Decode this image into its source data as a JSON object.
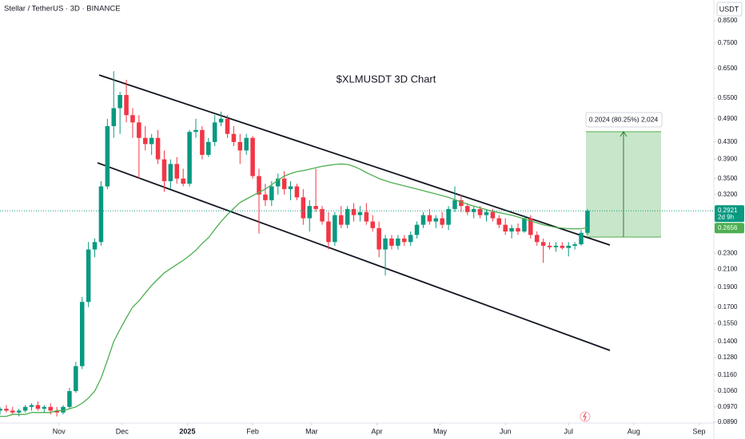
{
  "chart_data": {
    "type": "candlestick",
    "header": "Stellar / TetherUS · 3D · BINANCE",
    "title": "$XLMUSDT 3D Chart",
    "currency": "USDT",
    "countdown": "2d 9h",
    "measure_label": "0.2024 (80.25%) 2,024",
    "log": true,
    "grid": false,
    "up_color": "#089981",
    "down_color": "#f23645",
    "xlim": [
      3,
      342
    ],
    "xticks": [
      {
        "value": 31,
        "label": "Nov"
      },
      {
        "value": 61,
        "label": "Dec"
      },
      {
        "value": 92,
        "label": "2025"
      },
      {
        "value": 123,
        "label": "Feb"
      },
      {
        "value": 151,
        "label": "Mar"
      },
      {
        "value": 182,
        "label": "Apr"
      },
      {
        "value": 212,
        "label": "May"
      },
      {
        "value": 243,
        "label": "Jun"
      },
      {
        "value": 273,
        "label": "Jul"
      },
      {
        "value": 304,
        "label": "Aug"
      },
      {
        "value": 335,
        "label": "Sep"
      }
    ],
    "ylim": [
      0.0886,
      0.955
    ],
    "yticks": [
      {
        "value": 0.85,
        "label": "0.8500"
      },
      {
        "value": 0.75,
        "label": "0.7500"
      },
      {
        "value": 0.65,
        "label": "0.6500"
      },
      {
        "value": 0.55,
        "label": "0.5500"
      },
      {
        "value": 0.49,
        "label": "0.4900"
      },
      {
        "value": 0.43,
        "label": "0.4300"
      },
      {
        "value": 0.39,
        "label": "0.3900"
      },
      {
        "value": 0.35,
        "label": "0.3500"
      },
      {
        "value": 0.32,
        "label": "0.3200"
      },
      {
        "value": 0.23,
        "label": "0.2300"
      },
      {
        "value": 0.21,
        "label": "0.2100"
      },
      {
        "value": 0.19,
        "label": "0.1900"
      },
      {
        "value": 0.17,
        "label": "0.1700"
      },
      {
        "value": 0.155,
        "label": "0.1550"
      },
      {
        "value": 0.14,
        "label": "0.1400"
      },
      {
        "value": 0.128,
        "label": "0.1280"
      },
      {
        "value": 0.116,
        "label": "0.1160"
      },
      {
        "value": 0.106,
        "label": "0.1060"
      },
      {
        "value": 0.097,
        "label": "0.0970"
      },
      {
        "value": 0.089,
        "label": "0.0890"
      }
    ],
    "x": [
      3,
      6,
      9,
      12,
      15,
      18,
      21,
      24,
      27,
      30,
      33,
      36,
      39,
      42,
      45,
      48,
      51,
      54,
      57,
      60,
      63,
      66,
      69,
      72,
      75,
      78,
      81,
      84,
      87,
      90,
      93,
      96,
      99,
      102,
      105,
      108,
      111,
      114,
      117,
      120,
      123,
      126,
      129,
      132,
      135,
      138,
      141,
      144,
      147,
      150,
      153,
      156,
      159,
      162,
      165,
      168,
      171,
      174,
      177,
      180,
      183,
      186,
      189,
      192,
      195,
      198,
      201,
      204,
      207,
      210,
      213,
      216,
      219,
      222,
      225,
      228,
      231,
      234,
      237,
      240,
      243,
      246,
      249,
      252,
      255,
      258,
      261,
      264,
      267,
      270,
      273,
      276,
      279,
      282
    ],
    "open": [
      0.095,
      0.096,
      0.095,
      0.094,
      0.095,
      0.097,
      0.098,
      0.096,
      0.097,
      0.095,
      0.094,
      0.097,
      0.106,
      0.122,
      0.175,
      0.235,
      0.245,
      0.335,
      0.47,
      0.52,
      0.56,
      0.5,
      0.48,
      0.44,
      0.425,
      0.44,
      0.39,
      0.345,
      0.38,
      0.35,
      0.34,
      0.455,
      0.46,
      0.4,
      0.43,
      0.48,
      0.49,
      0.45,
      0.43,
      0.41,
      0.44,
      0.355,
      0.32,
      0.31,
      0.335,
      0.35,
      0.33,
      0.335,
      0.315,
      0.28,
      0.3,
      0.295,
      0.275,
      0.245,
      0.285,
      0.27,
      0.295,
      0.285,
      0.29,
      0.275,
      0.265,
      0.235,
      0.25,
      0.24,
      0.25,
      0.245,
      0.255,
      0.27,
      0.285,
      0.275,
      0.28,
      0.27,
      0.295,
      0.31,
      0.3,
      0.29,
      0.295,
      0.285,
      0.29,
      0.28,
      0.27,
      0.26,
      0.265,
      0.26,
      0.28,
      0.255,
      0.245,
      0.24,
      0.238,
      0.24,
      0.237,
      0.24,
      0.242,
      0.258
    ],
    "high": [
      0.097,
      0.098,
      0.097,
      0.096,
      0.098,
      0.099,
      0.1,
      0.098,
      0.099,
      0.097,
      0.098,
      0.108,
      0.125,
      0.18,
      0.245,
      0.25,
      0.345,
      0.49,
      0.64,
      0.57,
      0.61,
      0.52,
      0.5,
      0.47,
      0.45,
      0.46,
      0.41,
      0.39,
      0.395,
      0.37,
      0.46,
      0.49,
      0.47,
      0.44,
      0.5,
      0.51,
      0.5,
      0.47,
      0.45,
      0.45,
      0.445,
      0.37,
      0.34,
      0.345,
      0.36,
      0.365,
      0.345,
      0.34,
      0.33,
      0.31,
      0.37,
      0.3,
      0.29,
      0.29,
      0.3,
      0.3,
      0.305,
      0.3,
      0.305,
      0.285,
      0.275,
      0.255,
      0.255,
      0.255,
      0.255,
      0.26,
      0.275,
      0.29,
      0.295,
      0.285,
      0.29,
      0.3,
      0.335,
      0.32,
      0.305,
      0.3,
      0.3,
      0.295,
      0.295,
      0.285,
      0.28,
      0.27,
      0.272,
      0.285,
      0.285,
      0.26,
      0.25,
      0.245,
      0.245,
      0.245,
      0.245,
      0.245,
      0.262,
      0.295
    ],
    "low": [
      0.093,
      0.094,
      0.093,
      0.092,
      0.094,
      0.095,
      0.095,
      0.094,
      0.093,
      0.092,
      0.093,
      0.096,
      0.105,
      0.12,
      0.17,
      0.225,
      0.24,
      0.33,
      0.44,
      0.45,
      0.48,
      0.44,
      0.35,
      0.41,
      0.4,
      0.38,
      0.325,
      0.33,
      0.34,
      0.335,
      0.335,
      0.44,
      0.39,
      0.395,
      0.42,
      0.47,
      0.44,
      0.42,
      0.38,
      0.4,
      0.35,
      0.257,
      0.3,
      0.3,
      0.32,
      0.32,
      0.31,
      0.31,
      0.27,
      0.26,
      0.29,
      0.27,
      0.235,
      0.24,
      0.265,
      0.265,
      0.275,
      0.275,
      0.27,
      0.26,
      0.225,
      0.203,
      0.235,
      0.235,
      0.24,
      0.24,
      0.25,
      0.265,
      0.27,
      0.265,
      0.265,
      0.262,
      0.29,
      0.29,
      0.285,
      0.28,
      0.28,
      0.275,
      0.275,
      0.265,
      0.255,
      0.25,
      0.255,
      0.258,
      0.25,
      0.24,
      0.218,
      0.235,
      0.232,
      0.235,
      0.226,
      0.235,
      0.24,
      0.255
    ],
    "close": [
      0.096,
      0.095,
      0.094,
      0.095,
      0.097,
      0.098,
      0.096,
      0.097,
      0.095,
      0.094,
      0.097,
      0.106,
      0.122,
      0.175,
      0.235,
      0.245,
      0.335,
      0.47,
      0.52,
      0.56,
      0.5,
      0.48,
      0.44,
      0.425,
      0.44,
      0.39,
      0.345,
      0.38,
      0.35,
      0.34,
      0.455,
      0.46,
      0.4,
      0.43,
      0.48,
      0.49,
      0.45,
      0.43,
      0.41,
      0.44,
      0.355,
      0.32,
      0.31,
      0.335,
      0.35,
      0.33,
      0.335,
      0.315,
      0.28,
      0.3,
      0.295,
      0.275,
      0.245,
      0.285,
      0.27,
      0.295,
      0.285,
      0.29,
      0.275,
      0.265,
      0.235,
      0.25,
      0.24,
      0.25,
      0.245,
      0.255,
      0.27,
      0.285,
      0.275,
      0.28,
      0.27,
      0.295,
      0.31,
      0.3,
      0.29,
      0.295,
      0.285,
      0.29,
      0.28,
      0.27,
      0.26,
      0.265,
      0.26,
      0.28,
      0.255,
      0.245,
      0.24,
      0.238,
      0.24,
      0.237,
      0.24,
      0.242,
      0.258,
      0.2921
    ],
    "ma": {
      "color": "#4caf50",
      "values": [
        0.092,
        0.092,
        0.093,
        0.093,
        0.093,
        0.094,
        0.094,
        0.094,
        0.094,
        0.095,
        0.095,
        0.096,
        0.097,
        0.099,
        0.102,
        0.106,
        0.114,
        0.126,
        0.14,
        0.15,
        0.16,
        0.17,
        0.176,
        0.184,
        0.192,
        0.199,
        0.206,
        0.211,
        0.216,
        0.221,
        0.227,
        0.234,
        0.243,
        0.251,
        0.263,
        0.275,
        0.286,
        0.296,
        0.306,
        0.312,
        0.318,
        0.324,
        0.33,
        0.338,
        0.347,
        0.355,
        0.36,
        0.364,
        0.366,
        0.369,
        0.372,
        0.375,
        0.377,
        0.379,
        0.38,
        0.379,
        0.375,
        0.369,
        0.362,
        0.356,
        0.35,
        0.346,
        0.342,
        0.339,
        0.336,
        0.333,
        0.33,
        0.327,
        0.324,
        0.321,
        0.318,
        0.315,
        0.311,
        0.307,
        0.303,
        0.3,
        0.297,
        0.294,
        0.291,
        0.289,
        0.287,
        0.285,
        0.282,
        0.279,
        0.276,
        0.273,
        0.27,
        0.268,
        0.266,
        0.265,
        0.264,
        0.264,
        0.264,
        0.2656
      ]
    }
  }
}
